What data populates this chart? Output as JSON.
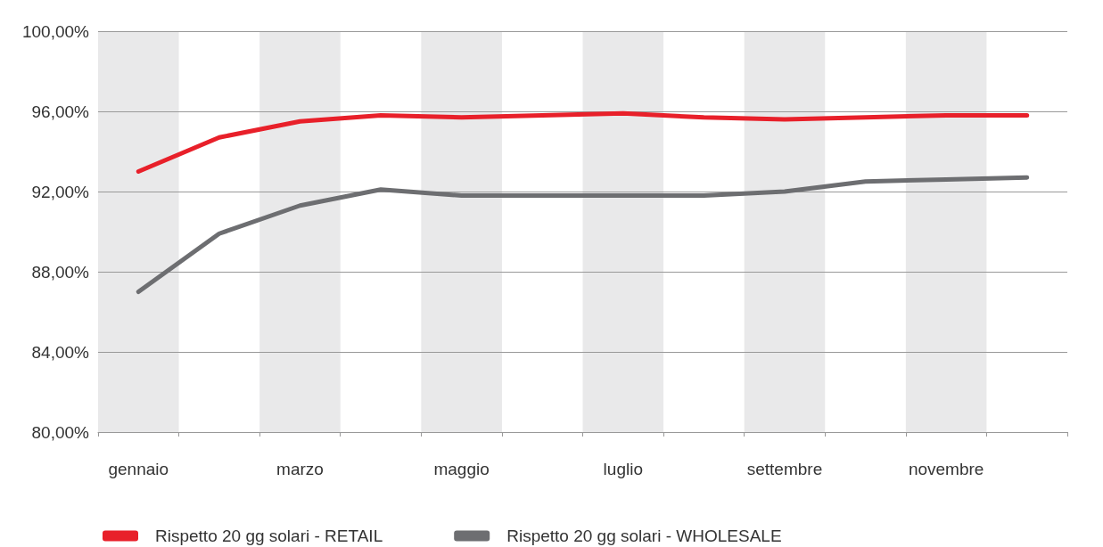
{
  "chart_data": {
    "type": "line",
    "categories": [
      "gennaio",
      null,
      "marzo",
      null,
      "maggio",
      null,
      "luglio",
      null,
      "settembre",
      null,
      "novembre",
      null
    ],
    "series": [
      {
        "name": "Rispetto 20 gg solari - RETAIL",
        "color": "#e8202a",
        "values": [
          93.0,
          94.7,
          95.5,
          95.8,
          95.7,
          95.8,
          95.9,
          95.7,
          95.6,
          95.7,
          95.8,
          95.8
        ]
      },
      {
        "name": "Rispetto 20 gg solari - WHOLESALE",
        "color": "#6d6e71",
        "values": [
          87.0,
          89.9,
          91.3,
          92.1,
          91.8,
          91.8,
          91.8,
          91.8,
          92.0,
          92.5,
          92.6,
          92.7
        ]
      }
    ],
    "ylim": [
      80,
      100
    ],
    "yticks": [
      {
        "value": 80,
        "label": "80,00%"
      },
      {
        "value": 84,
        "label": "84,00%"
      },
      {
        "value": 88,
        "label": "88,00%"
      },
      {
        "value": 92,
        "label": "92,00%"
      },
      {
        "value": 96,
        "label": "96,00%"
      },
      {
        "value": 100,
        "label": "100,00%"
      }
    ],
    "bands": [
      {
        "axis": "x",
        "from": "gennaio",
        "to": "gennaio",
        "color": "#e9e9ea"
      },
      {
        "axis": "x",
        "from": "marzo",
        "to": "marzo",
        "color": "#e9e9ea"
      },
      {
        "axis": "x",
        "from": "maggio",
        "to": "maggio",
        "color": "#e9e9ea"
      },
      {
        "axis": "x",
        "from": "luglio",
        "to": "luglio",
        "color": "#e9e9ea"
      },
      {
        "axis": "x",
        "from": "settembre",
        "to": "settembre",
        "color": "#e9e9ea"
      },
      {
        "axis": "x",
        "from": "novembre",
        "to": "novembre",
        "color": "#e9e9ea"
      }
    ],
    "grid": "y",
    "legend": "bottom left",
    "marker": "none",
    "line_style": "solid"
  }
}
